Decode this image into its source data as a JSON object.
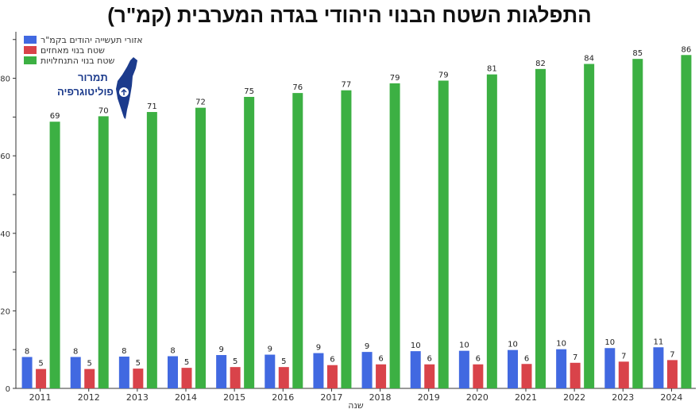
{
  "title": "התפלגות השטח הבנוי היהודי בגדה המערבית (קמ\"ר)",
  "logo": {
    "line1": "תמרור",
    "line2": "פוליטוגרפיה"
  },
  "colors": {
    "industrial": "#4169e1",
    "outpost": "#d9434a",
    "settlement": "#3cb043",
    "axis": "#333333"
  },
  "chart_data": {
    "type": "bar",
    "categories": [
      "2011",
      "2012",
      "2013",
      "2014",
      "2015",
      "2016",
      "2017",
      "2018",
      "2019",
      "2020",
      "2021",
      "2022",
      "2023",
      "2024"
    ],
    "series": [
      {
        "name": "אזורי תעשייה יהודים בקמ\"ר",
        "color": "#4169e1",
        "values": [
          8.1,
          8.1,
          8.2,
          8.3,
          8.6,
          8.7,
          9.1,
          9.4,
          9.6,
          9.7,
          9.9,
          10.1,
          10.4,
          10.6
        ],
        "labels": [
          "8",
          "8",
          "8",
          "8",
          "9",
          "9",
          "9",
          "9",
          "10",
          "10",
          "10",
          "10",
          "10",
          "11"
        ]
      },
      {
        "name": "שטח בנוי מאחזים",
        "color": "#d9434a",
        "values": [
          5.0,
          5.0,
          5.1,
          5.3,
          5.5,
          5.5,
          6.0,
          6.2,
          6.2,
          6.2,
          6.3,
          6.6,
          6.9,
          7.3
        ],
        "labels": [
          "5",
          "5",
          "5",
          "5",
          "5",
          "5",
          "6",
          "6",
          "6",
          "6",
          "6",
          "7",
          "7",
          "7"
        ]
      },
      {
        "name": "שטח בנוי התנחלויות",
        "color": "#3cb043",
        "values": [
          68.8,
          70.2,
          71.3,
          72.4,
          75.2,
          76.2,
          76.9,
          78.7,
          79.4,
          81.0,
          82.4,
          83.7,
          85.0,
          86.0
        ],
        "labels": [
          "69",
          "70",
          "71",
          "72",
          "75",
          "76",
          "77",
          "79",
          "79",
          "81",
          "82",
          "84",
          "85",
          "86"
        ]
      }
    ],
    "xlabel": "שנה",
    "ylabel": "",
    "ylim": [
      0,
      92
    ],
    "yticks": [
      0,
      20,
      40,
      60,
      80
    ],
    "grid": false,
    "legend": "top-left"
  }
}
